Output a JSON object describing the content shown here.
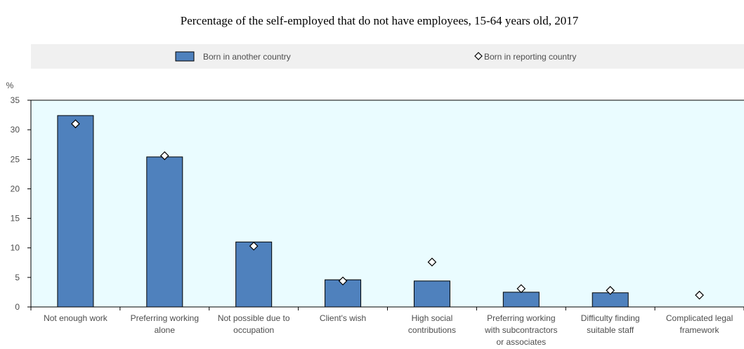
{
  "chart_data": {
    "type": "bar",
    "title": "Percentage of the self-employed that do not have employees, 15-64 years old, 2017",
    "ylabel": "%",
    "xlabel": "",
    "ylim": [
      0,
      35
    ],
    "yticks": [
      0,
      5,
      10,
      15,
      20,
      25,
      30,
      35
    ],
    "categories": [
      [
        "Not enough work"
      ],
      [
        "Preferring working",
        "alone"
      ],
      [
        "Not possible due to",
        "occupation"
      ],
      [
        "Client's wish"
      ],
      [
        "High social",
        "contributions"
      ],
      [
        "Preferring working",
        "with subcontractors",
        "or associates"
      ],
      [
        "Difficulty finding",
        "suitable staff"
      ],
      [
        "Complicated legal",
        "framework"
      ]
    ],
    "series": [
      {
        "name": "Born in another country",
        "mark": "bar",
        "values": [
          32.4,
          25.4,
          11.0,
          4.6,
          4.4,
          2.5,
          2.4,
          null
        ]
      },
      {
        "name": "Born in reporting country",
        "mark": "diamond",
        "values": [
          31.0,
          25.6,
          10.3,
          4.4,
          7.6,
          3.1,
          2.8,
          2.0
        ]
      }
    ],
    "legend_position": "top",
    "grid": false,
    "colors": {
      "bar_fill": "#4f81bd",
      "bar_stroke": "#000000",
      "plot_bg": "#eafcff",
      "legend_bg": "#f0f0f0",
      "diamond_fill": "#ffffff",
      "diamond_stroke": "#000000",
      "text": "#4d4d4d"
    }
  }
}
